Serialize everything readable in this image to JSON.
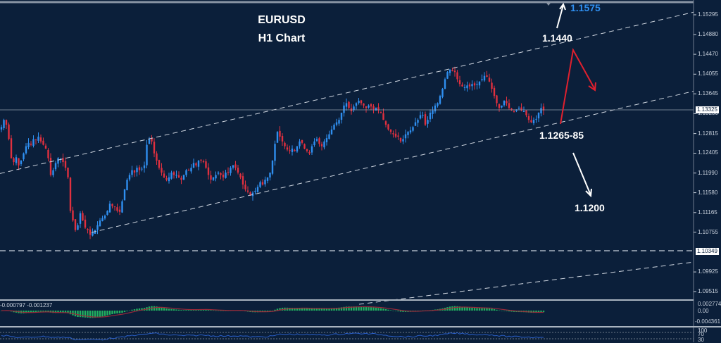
{
  "chart_data": {
    "type": "candlestick",
    "title": "EURUSD",
    "subtitle": "H1 Chart",
    "symbol": "EURUSD",
    "timeframe": "H1",
    "ylim": [
      1.093,
      1.156
    ],
    "y_ticks": [
      "1.15295",
      "1.14880",
      "1.14470",
      "1.14055",
      "1.13645",
      "1.13230",
      "1.12815",
      "1.12405",
      "1.11990",
      "1.11580",
      "1.11165",
      "1.10755",
      "1.09925",
      "1.09515"
    ],
    "current_price": "1.13325",
    "horizontal_level": "1.10349",
    "annotations": [
      {
        "text": "1.1575",
        "color": "#2f8ff0",
        "kind": "upside-target"
      },
      {
        "text": "1.1440",
        "color": "#ffffff",
        "kind": "resistance"
      },
      {
        "text": "1.1265-85",
        "color": "#ffffff",
        "kind": "support"
      },
      {
        "text": "1.1200",
        "color": "#ffffff",
        "kind": "downside-target"
      }
    ],
    "scenarios": [
      {
        "name": "bullish-path",
        "color": "#e0202e",
        "points": [
          [
            1.1295,
            0
          ],
          [
            1.145,
            1
          ],
          [
            1.1375,
            2
          ]
        ]
      },
      {
        "name": "breakout-path",
        "color": "#ffffff",
        "points": [
          [
            1.144,
            0
          ],
          [
            1.1575,
            1
          ]
        ]
      },
      {
        "name": "breakdown-path",
        "color": "#ffffff",
        "points": [
          [
            1.1245,
            0
          ],
          [
            1.116,
            1
          ]
        ]
      }
    ],
    "channel_lines": [
      {
        "name": "upper-channel",
        "from": [
          0,
          1.1198
        ],
        "to": [
          985,
          1.1535
        ]
      },
      {
        "name": "lower-channel",
        "from": [
          130,
          1.1075
        ],
        "to": [
          985,
          1.137
        ]
      },
      {
        "name": "lower-parallel",
        "from": [
          510,
          1.0925
        ],
        "to": [
          985,
          1.1013
        ]
      }
    ],
    "close_path": [
      1.1295,
      1.131,
      1.13,
      1.127,
      1.123,
      1.1222,
      1.1232,
      1.1215,
      1.1225,
      1.124,
      1.1255,
      1.1262,
      1.1258,
      1.127,
      1.1268,
      1.1275,
      1.1265,
      1.1258,
      1.125,
      1.123,
      1.1195,
      1.1205,
      1.122,
      1.123,
      1.1228,
      1.1222,
      1.121,
      1.119,
      1.112,
      1.11,
      1.108,
      1.109,
      1.1115,
      1.11,
      1.1085,
      1.108,
      1.107,
      1.1075,
      1.108,
      1.109,
      1.11,
      1.1105,
      1.111,
      1.112,
      1.1135,
      1.113,
      1.1128,
      1.112,
      1.1118,
      1.114,
      1.1165,
      1.1185,
      1.1195,
      1.1205,
      1.12,
      1.121,
      1.1205,
      1.1208,
      1.1215,
      1.1258,
      1.127,
      1.1265,
      1.124,
      1.1225,
      1.121,
      1.12,
      1.119,
      1.1185,
      1.119,
      1.12,
      1.1195,
      1.1195,
      1.119,
      1.1185,
      1.1195,
      1.1205,
      1.1205,
      1.121,
      1.122,
      1.1215,
      1.1225,
      1.1225,
      1.1222,
      1.121,
      1.1195,
      1.1185,
      1.119,
      1.1195,
      1.12,
      1.1195,
      1.119,
      1.12,
      1.12,
      1.121,
      1.1215,
      1.121,
      1.12,
      1.119,
      1.1175,
      1.1165,
      1.116,
      1.1152,
      1.1158,
      1.1162,
      1.117,
      1.118,
      1.1175,
      1.1185,
      1.119,
      1.12,
      1.1225,
      1.126,
      1.1285,
      1.1275,
      1.1265,
      1.1255,
      1.1248,
      1.1245,
      1.125,
      1.1245,
      1.1255,
      1.1265,
      1.1262,
      1.125,
      1.1245,
      1.124,
      1.1255,
      1.1265,
      1.127,
      1.126,
      1.1255,
      1.1265,
      1.1272,
      1.128,
      1.129,
      1.13,
      1.1305,
      1.131,
      1.1325,
      1.134,
      1.1345,
      1.1335,
      1.1328,
      1.1338,
      1.1345,
      1.135,
      1.1345,
      1.134,
      1.1335,
      1.134,
      1.1338,
      1.1332,
      1.1335,
      1.133,
      1.1325,
      1.131,
      1.13,
      1.129,
      1.1285,
      1.128,
      1.1275,
      1.1275,
      1.1265,
      1.127,
      1.128,
      1.1285,
      1.1288,
      1.1295,
      1.1305,
      1.131,
      1.132,
      1.132,
      1.13,
      1.131,
      1.1325,
      1.133,
      1.134,
      1.1345,
      1.136,
      1.1375,
      1.1395,
      1.141,
      1.1415,
      1.1412,
      1.141,
      1.1395,
      1.1385,
      1.138,
      1.1378,
      1.1382,
      1.138,
      1.1385,
      1.1382,
      1.1385,
      1.139,
      1.1395,
      1.1402,
      1.14,
      1.139,
      1.1375,
      1.136,
      1.1345,
      1.1335,
      1.134,
      1.135,
      1.1345,
      1.1335,
      1.133,
      1.1328,
      1.1332,
      1.1335,
      1.133,
      1.1328,
      1.132,
      1.131,
      1.1305,
      1.131,
      1.1312,
      1.1325,
      1.1335,
      1.133
    ],
    "indicator_macd": {
      "label": "-0.000797 -0.001237",
      "ticks": [
        "0.002774",
        "0.00",
        "-0.004361"
      ],
      "hist_color": "#22b060",
      "signal_color": "#9a2a3a"
    },
    "indicator_osc": {
      "ticks": [
        "100",
        "70",
        "30"
      ],
      "line_color": "#2a5fc8"
    }
  },
  "colors": {
    "background": "#0b1f3a",
    "bull": "#2f8ff0",
    "bear": "#e0303f",
    "grid_line": "#cfd6e0",
    "frame": "#a9b3bf"
  }
}
